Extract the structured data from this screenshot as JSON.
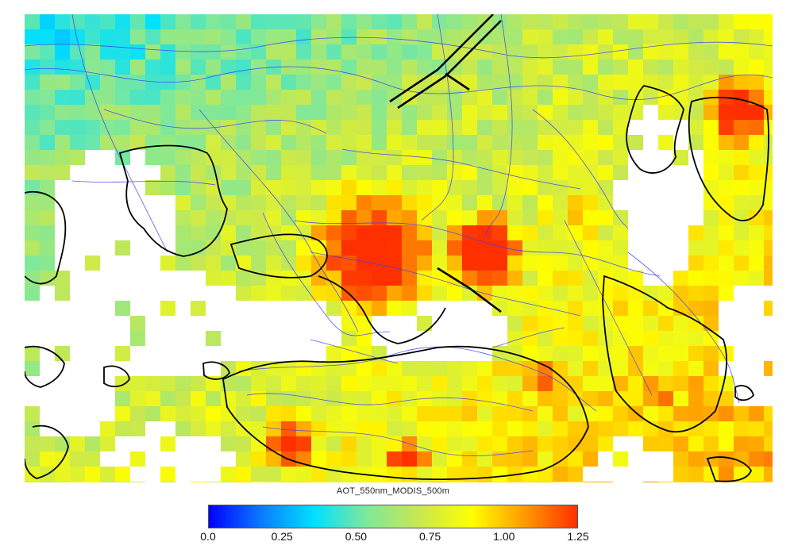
{
  "colorbar": {
    "title": "AOT_550nm_MODIS_500m",
    "min": 0.0,
    "max": 1.25,
    "ticks": [
      {
        "value": 0.0,
        "label": "0.0"
      },
      {
        "value": 0.25,
        "label": "0.25"
      },
      {
        "value": 0.5,
        "label": "0.50"
      },
      {
        "value": 0.75,
        "label": "0.75"
      },
      {
        "value": 1.0,
        "label": "1.00"
      },
      {
        "value": 1.25,
        "label": "1.25"
      }
    ],
    "stops": [
      "#0000ff",
      "#0a7cff",
      "#00e0ff",
      "#7fe89a",
      "#c8e850",
      "#ffff00",
      "#ff9a00",
      "#ff3000"
    ]
  },
  "colors": {
    "coastline": "#000000",
    "road_network": "#3a3aff",
    "no_data": "#ffffff"
  }
}
